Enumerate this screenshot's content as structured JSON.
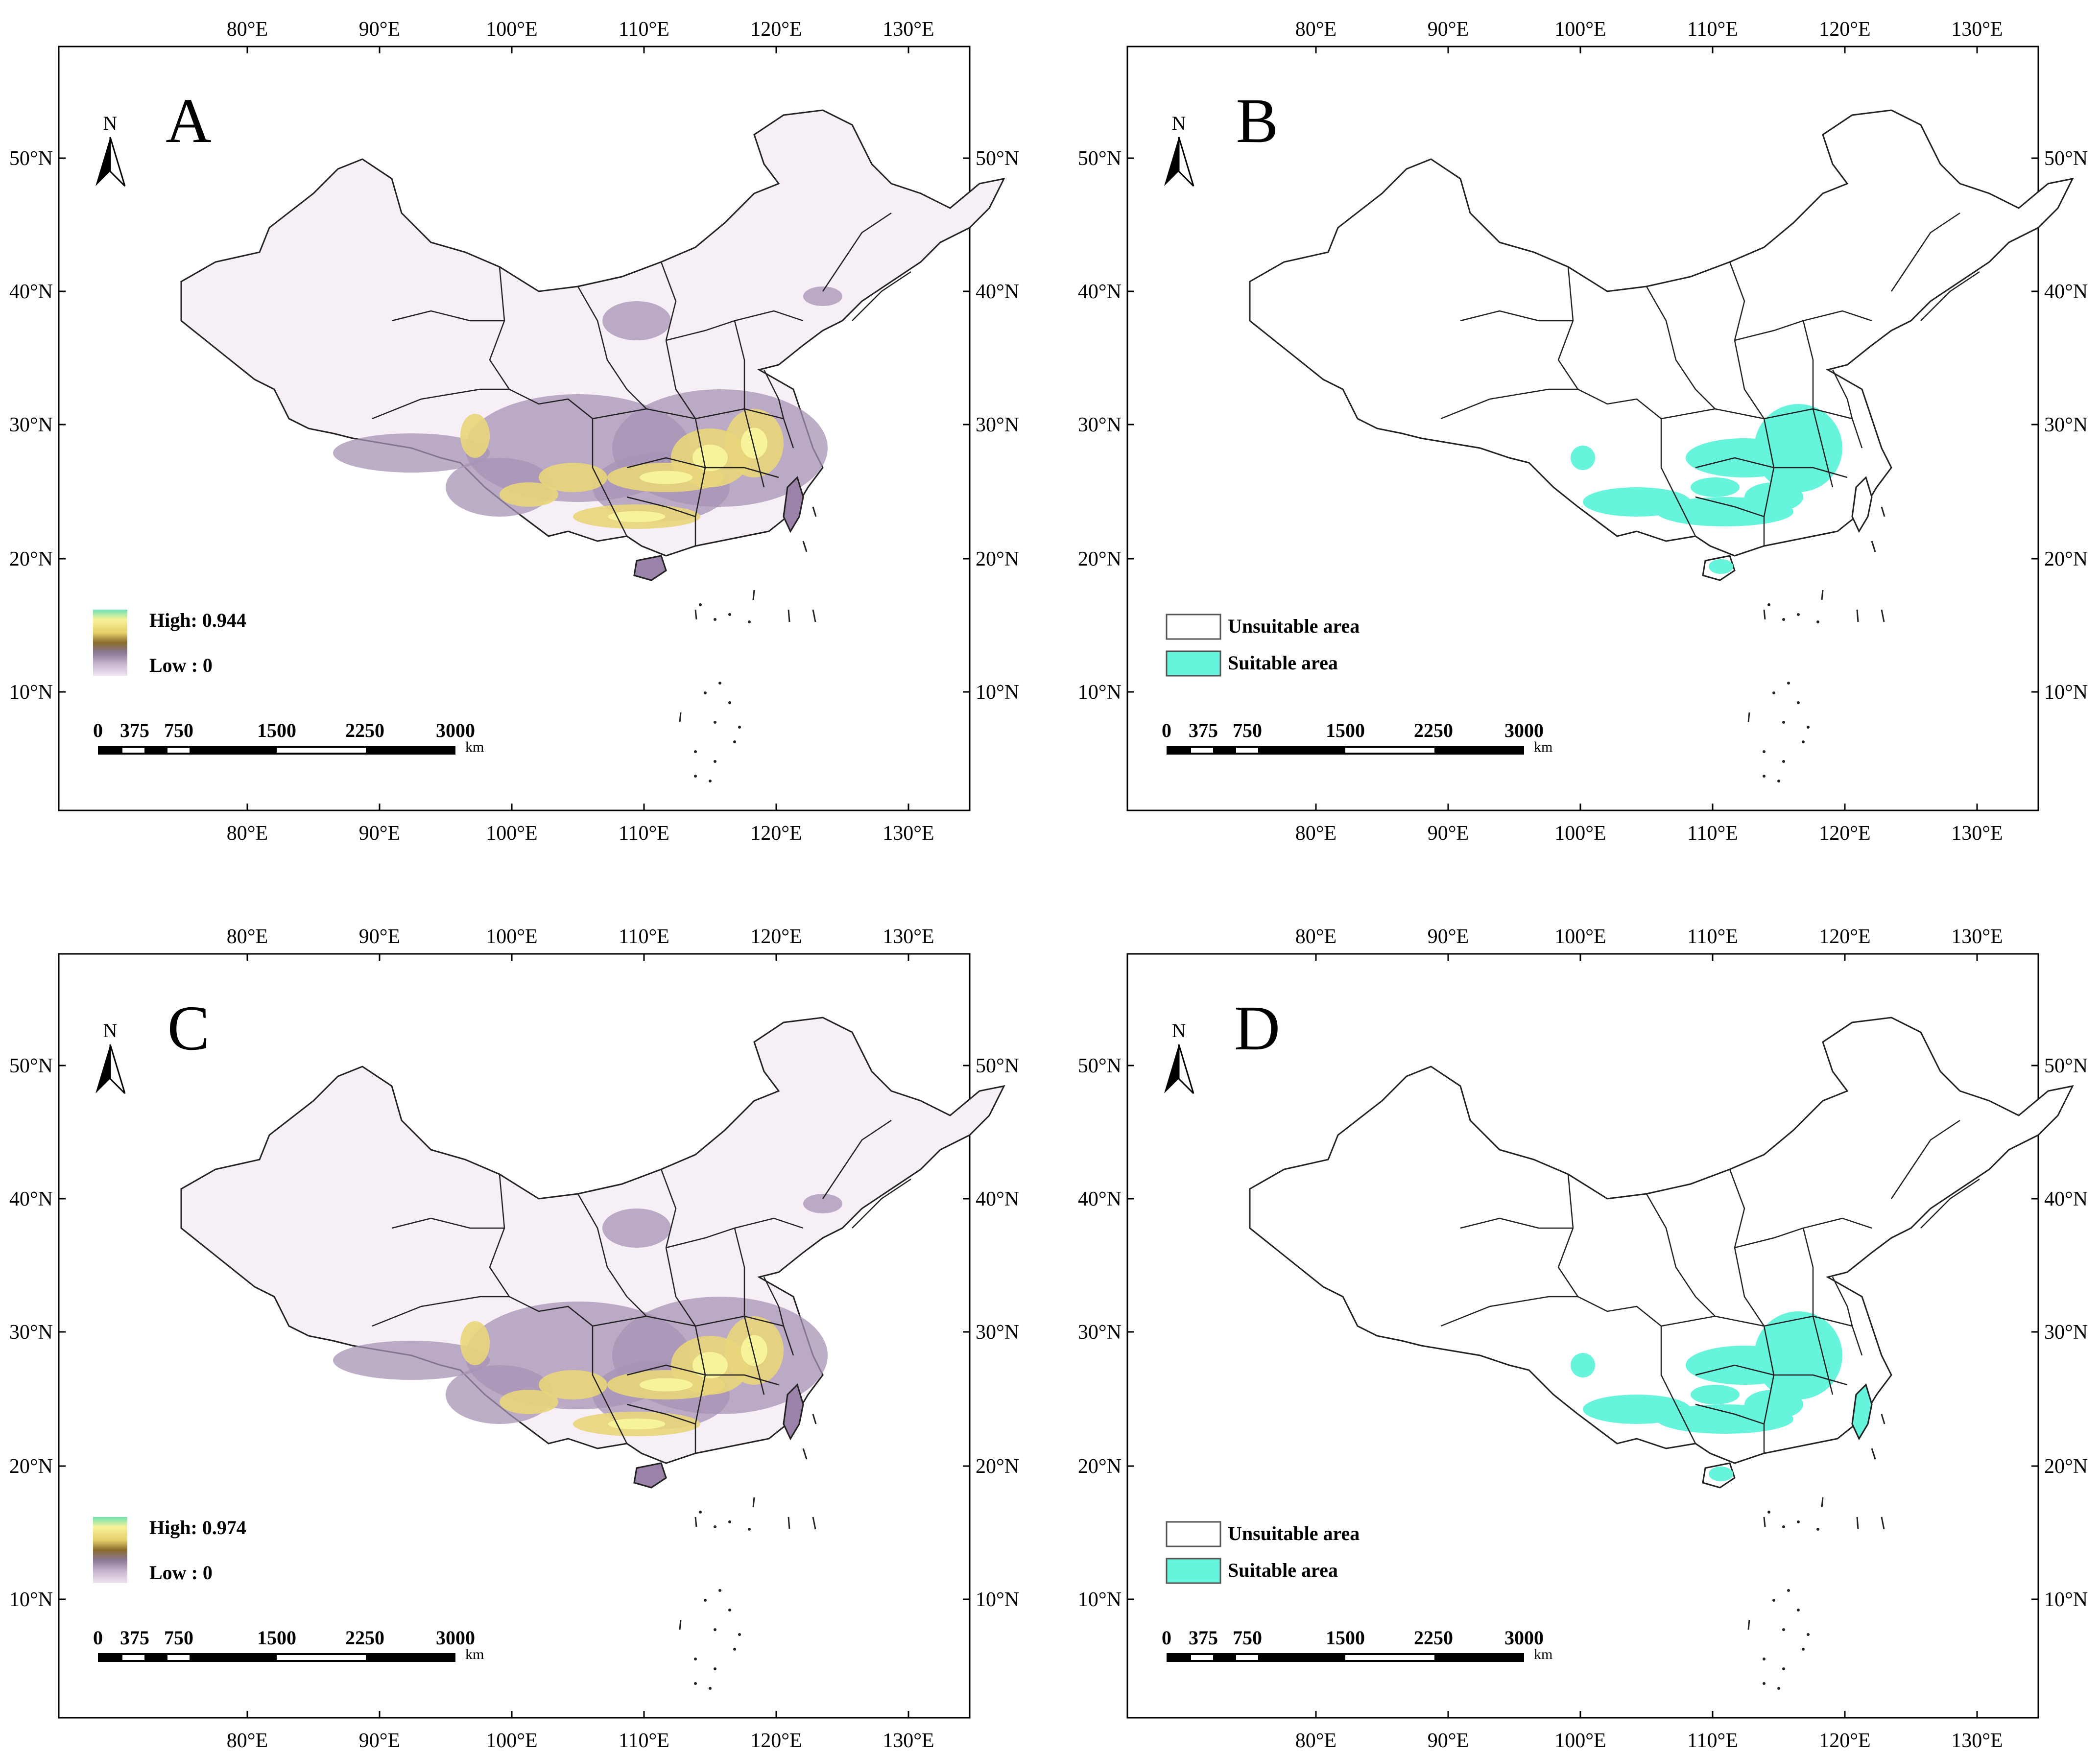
{
  "panels": [
    {
      "letter": "A",
      "type": "continuous",
      "legend": {
        "high": "High: 0.944",
        "low": "Low : 0"
      }
    },
    {
      "letter": "B",
      "type": "binary",
      "legend": {
        "unsuitable": "Unsuitable area",
        "suitable": "Suitable area"
      }
    },
    {
      "letter": "C",
      "type": "continuous",
      "legend": {
        "high": "High: 0.974",
        "low": "Low : 0"
      }
    },
    {
      "letter": "D",
      "type": "binary",
      "legend": {
        "unsuitable": "Unsuitable area",
        "suitable": "Suitable area"
      }
    }
  ],
  "lon_labels": [
    "80°E",
    "90°E",
    "100°E",
    "110°E",
    "120°E",
    "130°E"
  ],
  "lat_labels": [
    "50°N",
    "40°N",
    "30°N",
    "20°N",
    "10°N"
  ],
  "north_label": "N",
  "scale_labels": [
    "0",
    "375",
    "750",
    "1500",
    "2250",
    "3000"
  ],
  "scale_unit": "km",
  "colors": {
    "suitable": "#66f5dc",
    "land": "#f6f0f6",
    "ramp": [
      "#6fe0b0",
      "#f7f39a",
      "#e6cf6a",
      "#8a6a2c",
      "#8a7896",
      "#c7b5cf",
      "#efe4f0"
    ]
  }
}
